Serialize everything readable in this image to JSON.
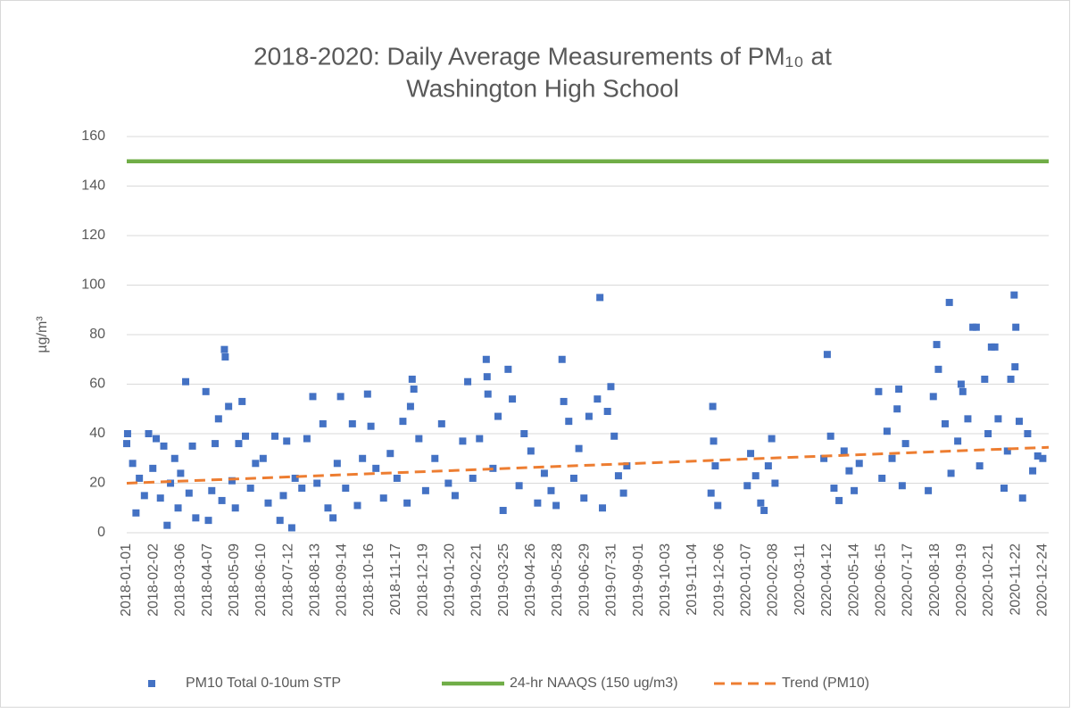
{
  "chart_data": {
    "type": "scatter",
    "title": [
      "2018-2020: Daily Average Measurements of PM₁₀ at",
      "Washington High School"
    ],
    "y_label": "µg/m³",
    "xlim": [
      "2018-01-01",
      "2020-12-31"
    ],
    "xticks": [
      "2018-01-01",
      "2018-02-02",
      "2018-03-06",
      "2018-04-07",
      "2018-05-09",
      "2018-06-10",
      "2018-07-12",
      "2018-08-13",
      "2018-09-14",
      "2018-10-16",
      "2018-11-17",
      "2018-12-19",
      "2019-01-20",
      "2019-02-21",
      "2019-03-25",
      "2019-04-26",
      "2019-05-28",
      "2019-06-29",
      "2019-07-31",
      "2019-09-01",
      "2019-10-03",
      "2019-11-04",
      "2019-12-06",
      "2020-01-07",
      "2020-02-08",
      "2020-03-11",
      "2020-04-12",
      "2020-05-14",
      "2020-06-15",
      "2020-07-17",
      "2020-08-18",
      "2020-09-19",
      "2020-10-21",
      "2020-11-22",
      "2020-12-24"
    ],
    "ylim": [
      0,
      160
    ],
    "yticks": [
      0,
      20,
      40,
      60,
      80,
      100,
      120,
      140,
      160
    ],
    "grid": true,
    "legend": "bottom",
    "series": [
      {
        "name": "PM10 Total 0-10um STP",
        "type": "scatter",
        "color": "#4472c4",
        "x": [
          "2018-01-01",
          "2018-01-02",
          "2018-01-08",
          "2018-01-12",
          "2018-01-16",
          "2018-01-22",
          "2018-01-27",
          "2018-02-01",
          "2018-02-05",
          "2018-02-10",
          "2018-02-14",
          "2018-02-18",
          "2018-02-22",
          "2018-02-27",
          "2018-03-03",
          "2018-03-06",
          "2018-03-12",
          "2018-03-16",
          "2018-03-20",
          "2018-03-24",
          "2018-04-05",
          "2018-04-08",
          "2018-04-12",
          "2018-04-16",
          "2018-04-20",
          "2018-04-24",
          "2018-04-27",
          "2018-04-28",
          "2018-05-02",
          "2018-05-06",
          "2018-05-10",
          "2018-05-14",
          "2018-05-18",
          "2018-05-22",
          "2018-05-28",
          "2018-06-03",
          "2018-06-12",
          "2018-06-18",
          "2018-06-26",
          "2018-07-02",
          "2018-07-06",
          "2018-07-10",
          "2018-07-16",
          "2018-07-20",
          "2018-07-28",
          "2018-08-03",
          "2018-08-10",
          "2018-08-15",
          "2018-08-22",
          "2018-08-28",
          "2018-09-03",
          "2018-09-08",
          "2018-09-12",
          "2018-09-18",
          "2018-09-26",
          "2018-10-02",
          "2018-10-08",
          "2018-10-14",
          "2018-10-18",
          "2018-10-24",
          "2018-11-02",
          "2018-11-10",
          "2018-11-18",
          "2018-11-25",
          "2018-11-30",
          "2018-12-04",
          "2018-12-06",
          "2018-12-08",
          "2018-12-14",
          "2018-12-22",
          "2019-01-02",
          "2019-01-10",
          "2019-01-18",
          "2019-01-26",
          "2019-02-04",
          "2019-02-10",
          "2019-02-16",
          "2019-02-24",
          "2019-03-04",
          "2019-03-05",
          "2019-03-06",
          "2019-03-12",
          "2019-03-18",
          "2019-03-24",
          "2019-03-30",
          "2019-04-04",
          "2019-04-12",
          "2019-04-18",
          "2019-04-26",
          "2019-05-04",
          "2019-05-12",
          "2019-05-20",
          "2019-05-26",
          "2019-06-02",
          "2019-06-04",
          "2019-06-10",
          "2019-06-16",
          "2019-06-22",
          "2019-06-28",
          "2019-07-04",
          "2019-07-17",
          "2019-07-14",
          "2019-07-20",
          "2019-07-26",
          "2019-07-30",
          "2019-08-03",
          "2019-08-08",
          "2019-08-14",
          "2019-08-18",
          "2019-11-26",
          "2019-11-28",
          "2019-11-29",
          "2019-12-01",
          "2019-12-04",
          "2020-01-08",
          "2020-01-12",
          "2020-01-18",
          "2020-01-24",
          "2020-01-28",
          "2020-02-02",
          "2020-02-06",
          "2020-02-10",
          "2020-04-08",
          "2020-04-12",
          "2020-04-16",
          "2020-04-20",
          "2020-04-26",
          "2020-05-02",
          "2020-05-08",
          "2020-05-14",
          "2020-05-20",
          "2020-06-12",
          "2020-06-16",
          "2020-06-22",
          "2020-06-28",
          "2020-07-04",
          "2020-07-06",
          "2020-07-10",
          "2020-07-14",
          "2020-08-10",
          "2020-08-16",
          "2020-08-20",
          "2020-08-22",
          "2020-09-04",
          "2020-08-30",
          "2020-09-06",
          "2020-09-14",
          "2020-09-18",
          "2020-09-20",
          "2020-09-26",
          "2020-10-02",
          "2020-10-06",
          "2020-10-10",
          "2020-10-16",
          "2020-10-20",
          "2020-10-24",
          "2020-10-28",
          "2020-11-01",
          "2020-11-20",
          "2020-11-08",
          "2020-11-12",
          "2020-11-16",
          "2020-11-21",
          "2020-11-22",
          "2020-11-26",
          "2020-11-30",
          "2020-12-06",
          "2020-12-12",
          "2020-12-18",
          "2020-12-24"
        ],
        "values": [
          36,
          40,
          28,
          8,
          22,
          15,
          40,
          26,
          38,
          14,
          35,
          3,
          20,
          30,
          10,
          24,
          61,
          16,
          35,
          6,
          57,
          5,
          17,
          36,
          46,
          13,
          74,
          71,
          51,
          21,
          10,
          36,
          53,
          39,
          18,
          28,
          30,
          12,
          39,
          5,
          15,
          37,
          2,
          22,
          18,
          38,
          55,
          20,
          44,
          10,
          6,
          28,
          55,
          18,
          44,
          11,
          30,
          56,
          43,
          26,
          14,
          32,
          22,
          45,
          12,
          51,
          62,
          58,
          38,
          17,
          30,
          44,
          20,
          15,
          37,
          61,
          22,
          38,
          70,
          63,
          56,
          26,
          47,
          9,
          66,
          54,
          19,
          40,
          33,
          12,
          24,
          17,
          11,
          70,
          53,
          45,
          22,
          34,
          14,
          47,
          95,
          54,
          10,
          49,
          59,
          39,
          23,
          16,
          27,
          16,
          51,
          37,
          27,
          11,
          19,
          32,
          23,
          12,
          9,
          27,
          38,
          20,
          30,
          72,
          39,
          18,
          13,
          33,
          25,
          17,
          28,
          57,
          22,
          41,
          30,
          50,
          58,
          19,
          36,
          17,
          55,
          76,
          66,
          93,
          44,
          24,
          37,
          60,
          57,
          46,
          83,
          83,
          27,
          62,
          40,
          75,
          75,
          46,
          96,
          18,
          33,
          62,
          67,
          83,
          45,
          14,
          40,
          25,
          31,
          30
        ]
      },
      {
        "name": "24-hr NAAQS (150 ug/m3)",
        "type": "line",
        "color": "#70ad47",
        "x": [
          "2018-01-01",
          "2020-12-31"
        ],
        "values": [
          150,
          150
        ]
      },
      {
        "name": "Trend (PM10)",
        "type": "line",
        "dashed": true,
        "color": "#ed7d31",
        "x": [
          "2018-01-01",
          "2020-12-31"
        ],
        "values": [
          20,
          34.5
        ]
      }
    ]
  }
}
